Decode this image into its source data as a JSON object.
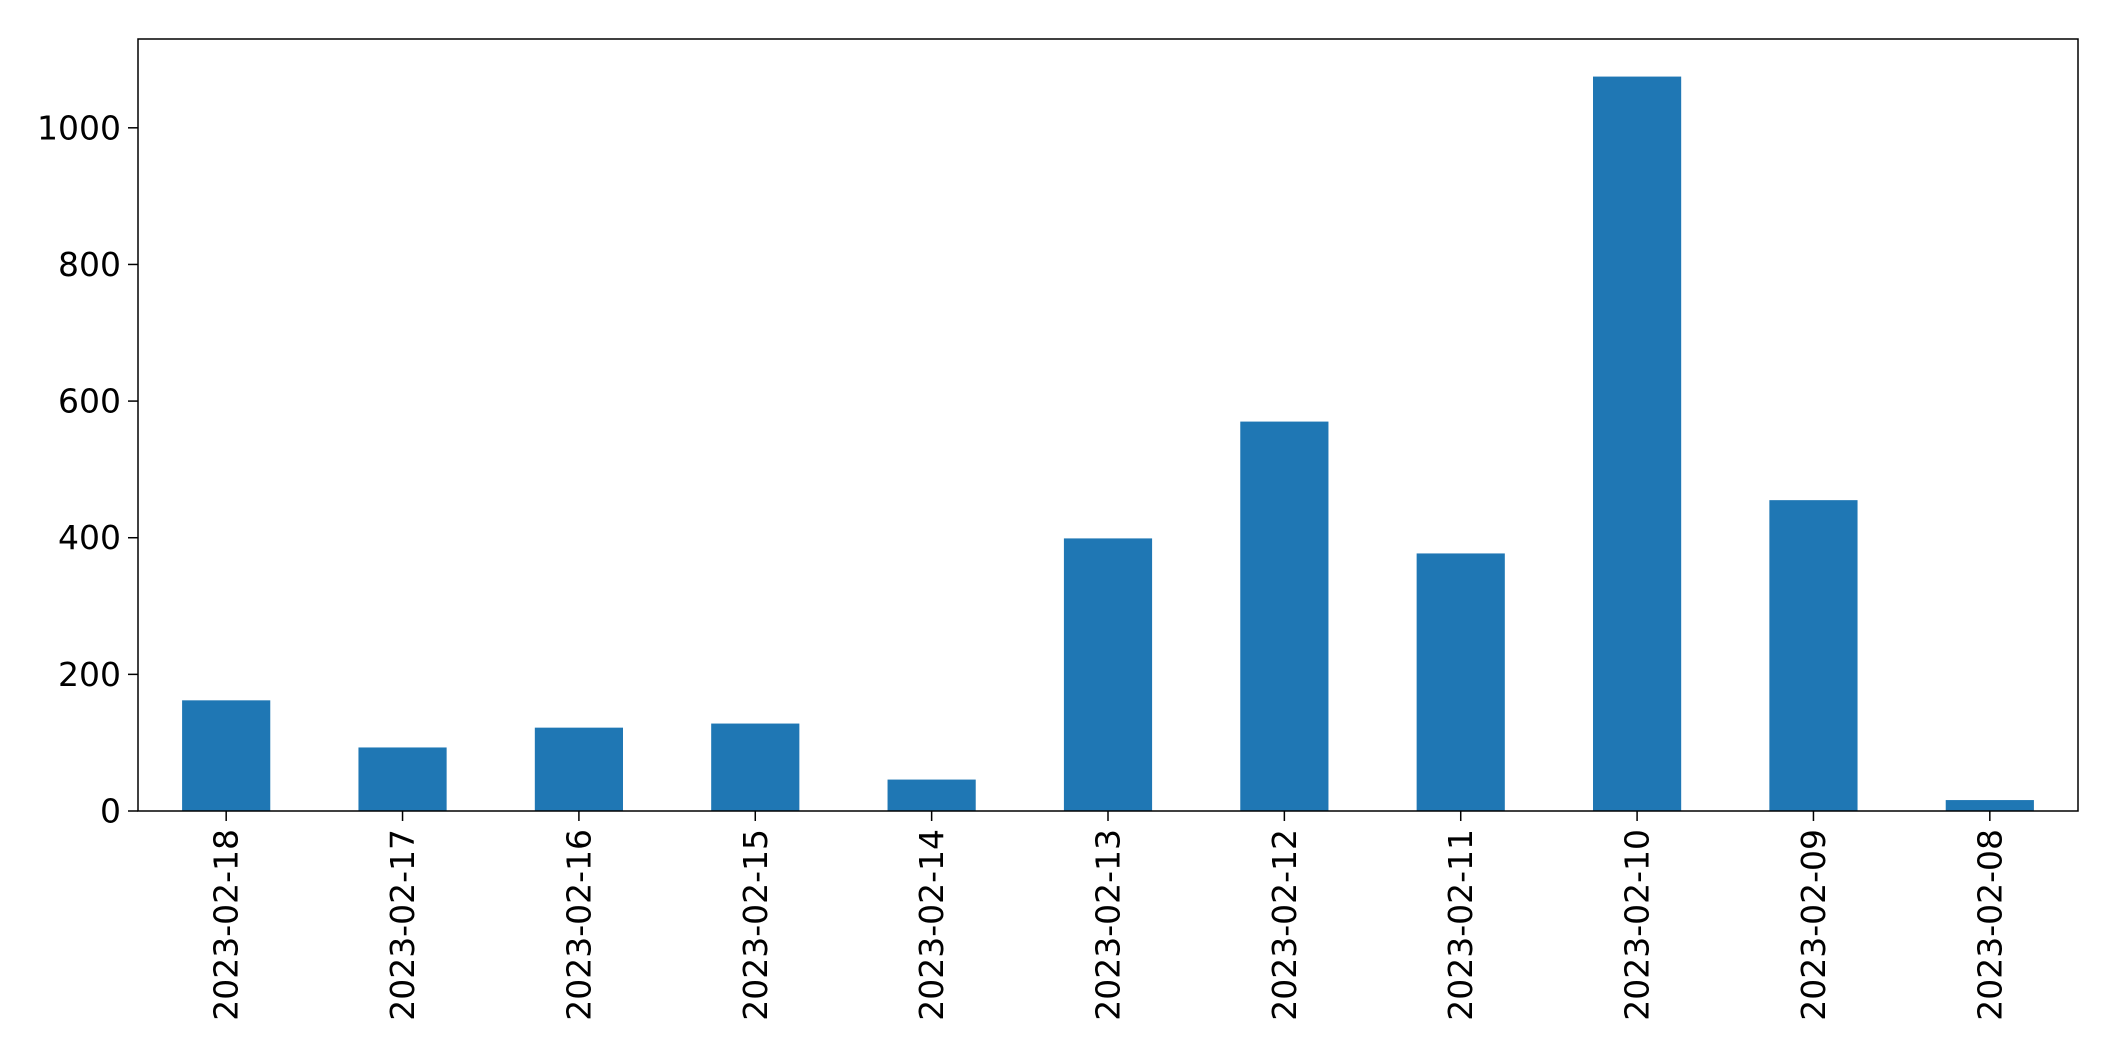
{
  "chart_data": {
    "type": "bar",
    "title": "",
    "xlabel": "",
    "ylabel": "",
    "categories": [
      "2023-02-18",
      "2023-02-17",
      "2023-02-16",
      "2023-02-15",
      "2023-02-14",
      "2023-02-13",
      "2023-02-12",
      "2023-02-11",
      "2023-02-10",
      "2023-02-09",
      "2023-02-08"
    ],
    "values": [
      162,
      93,
      122,
      128,
      46,
      399,
      570,
      377,
      1075,
      455,
      16
    ],
    "ylim": [
      0,
      1130
    ],
    "yticks": [
      0,
      200,
      400,
      600,
      800,
      1000
    ],
    "x_tick_rotation": 90,
    "grid": false,
    "legend": "none",
    "bar_color": "#1f77b4"
  }
}
